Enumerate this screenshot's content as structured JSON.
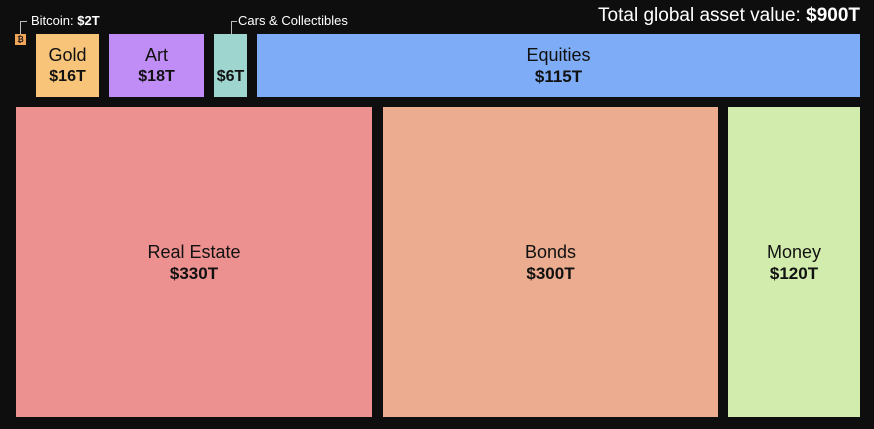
{
  "header": {
    "total_label": "Total global asset value:",
    "total_value": "$900T"
  },
  "callouts": {
    "bitcoin_label": "Bitcoin:",
    "bitcoin_value": "$2T",
    "bitcoin_symbol": "₿",
    "cars_label": "Cars & Collectibles"
  },
  "colors": {
    "bitcoin": "#f2a65a",
    "gold": "#f7c47a",
    "art": "#c08cf6",
    "cars": "#9ed6cf",
    "equities": "#7eacf6",
    "real_estate": "#ec9190",
    "bonds": "#ebac8f",
    "money": "#d1ecac",
    "background": "#0e0e0e"
  },
  "chart_data": {
    "type": "treemap",
    "title": "Total global asset value: $900T",
    "units": "trillion USD",
    "total": 900,
    "items": [
      {
        "name": "Real Estate",
        "label": "$330T",
        "value": 330
      },
      {
        "name": "Bonds",
        "label": "$300T",
        "value": 300
      },
      {
        "name": "Money",
        "label": "$120T",
        "value": 120
      },
      {
        "name": "Equities",
        "label": "$115T",
        "value": 115
      },
      {
        "name": "Art",
        "label": "$18T",
        "value": 18
      },
      {
        "name": "Gold",
        "label": "$16T",
        "value": 16
      },
      {
        "name": "Cars & Collectibles",
        "label": "$6T",
        "value": 6
      },
      {
        "name": "Bitcoin",
        "label": "$2T",
        "value": 2
      }
    ]
  }
}
